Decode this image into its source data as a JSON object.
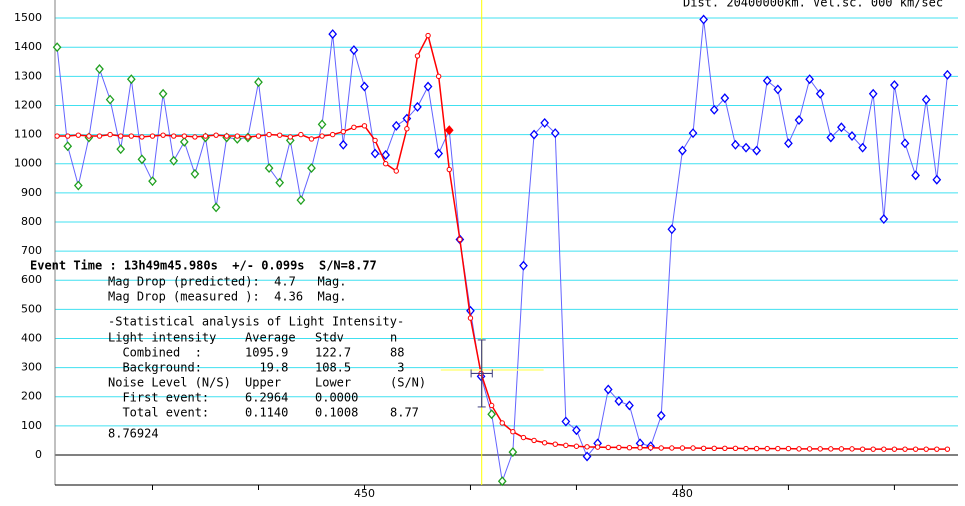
{
  "chart_data": {
    "type": "line",
    "header_text": "Dist. 20400000km. Vel.sc. 000 km/sec",
    "xlim": [
      420.8,
      506
    ],
    "ylim": [
      -103,
      1562
    ],
    "xticks": [
      430,
      440,
      450,
      460,
      470,
      480,
      490,
      500
    ],
    "xtick_labels": [
      450,
      480
    ],
    "yticks": [
      0,
      100,
      200,
      300,
      400,
      500,
      600,
      700,
      800,
      900,
      1000,
      1100,
      1200,
      1300,
      1400,
      1500
    ],
    "grid": true,
    "grid_color": "#40e0f0",
    "zero_line": true,
    "series": [
      {
        "color": "#6464ff",
        "marker": "diamond",
        "x": [
          421,
          422,
          423,
          424,
          425,
          426,
          427,
          428,
          429,
          430,
          431,
          432,
          433,
          434,
          435,
          436,
          437,
          438,
          439,
          440,
          441,
          442,
          443,
          444,
          445,
          446,
          447,
          448,
          449,
          450,
          451,
          452,
          453,
          454,
          455,
          456,
          457,
          458,
          459,
          460,
          461,
          462,
          463,
          464,
          465,
          466,
          467,
          468,
          469,
          470,
          471,
          472,
          473,
          474,
          475,
          476,
          477,
          478,
          479,
          480,
          481,
          482,
          483,
          484,
          485,
          486,
          487,
          488,
          489,
          490,
          491,
          492,
          493,
          494,
          495,
          496,
          497,
          498,
          499,
          500,
          501,
          502,
          503,
          504,
          505
        ],
        "values": [
          1400,
          1060,
          925,
          1090,
          1325,
          1220,
          1050,
          1290,
          1015,
          940,
          1240,
          1010,
          1075,
          965,
          1090,
          850,
          1090,
          1085,
          1090,
          1280,
          985,
          935,
          1080,
          875,
          985,
          1135,
          1445,
          1065,
          1390,
          1265,
          1035,
          1030,
          1130,
          1155,
          1195,
          1265,
          1035,
          1115,
          740,
          495,
          270,
          140,
          -90,
          10,
          650,
          1100,
          1140,
          1105,
          115,
          85,
          -5,
          40,
          225,
          185,
          170,
          40,
          30,
          135,
          775,
          1045,
          1105,
          1495,
          1185,
          1225,
          1065,
          1055,
          1045,
          1285,
          1255,
          1070,
          1150,
          1290,
          1240,
          1090,
          1125,
          1095,
          1055,
          1240,
          810,
          1270,
          1070,
          960,
          1220,
          945,
          1305
        ],
        "point_colors": [
          "#20a020",
          "#20a020",
          "#20a020",
          "#20a020",
          "#20a020",
          "#20a020",
          "#20a020",
          "#20a020",
          "#20a020",
          "#20a020",
          "#20a020",
          "#20a020",
          "#20a020",
          "#20a020",
          "#20a020",
          "#20a020",
          "#20a020",
          "#20a020",
          "#20a020",
          "#20a020",
          "#20a020",
          "#20a020",
          "#20a020",
          "#20a020",
          "#20a020",
          "#20a020",
          "#0000ff",
          "#0000ff",
          "#0000ff",
          "#0000ff",
          "#0000ff",
          "#0000ff",
          "#0000ff",
          "#0000ff",
          "#0000ff",
          "#0000ff",
          "#0000ff",
          "#ff0000",
          "#0000ff",
          "#0000ff",
          "#0000ff",
          "#20a020",
          "#20a020",
          "#20a020",
          "#0000ff",
          "#0000ff",
          "#0000ff",
          "#0000ff",
          "#0000ff",
          "#0000ff",
          "#0000ff",
          "#0000ff",
          "#0000ff",
          "#0000ff",
          "#0000ff",
          "#0000ff",
          "#0000ff",
          "#0000ff",
          "#0000ff",
          "#0000ff",
          "#0000ff",
          "#0000ff",
          "#0000ff",
          "#0000ff",
          "#0000ff",
          "#0000ff",
          "#0000ff",
          "#0000ff",
          "#0000ff",
          "#0000ff",
          "#0000ff",
          "#0000ff",
          "#0000ff",
          "#0000ff",
          "#0000ff",
          "#0000ff",
          "#0000ff",
          "#0000ff",
          "#0000ff",
          "#0000ff",
          "#0000ff",
          "#0000ff",
          "#0000ff",
          "#0000ff",
          "#0000ff"
        ]
      },
      {
        "color": "#ff0000",
        "marker": "circle",
        "x": [
          421,
          422,
          423,
          424,
          425,
          426,
          427,
          428,
          429,
          430,
          431,
          432,
          433,
          434,
          435,
          436,
          437,
          438,
          439,
          440,
          441,
          442,
          443,
          444,
          445,
          446,
          447,
          448,
          449,
          450,
          451,
          452,
          453,
          454,
          455,
          456,
          457,
          458,
          459,
          460,
          461,
          462,
          463,
          464,
          465,
          466,
          467,
          468,
          469,
          470,
          471,
          472,
          473,
          474,
          475,
          476,
          477,
          478,
          479,
          480,
          481,
          482,
          483,
          484,
          485,
          486,
          487,
          488,
          489,
          490,
          491,
          492,
          493,
          494,
          495,
          496,
          497,
          498,
          499,
          500,
          501,
          502,
          503,
          504,
          505
        ],
        "values": [
          1095,
          1095,
          1098,
          1095,
          1095,
          1100,
          1095,
          1095,
          1092,
          1095,
          1098,
          1095,
          1095,
          1092,
          1095,
          1098,
          1095,
          1095,
          1092,
          1095,
          1100,
          1098,
          1092,
          1100,
          1085,
          1095,
          1100,
          1110,
          1125,
          1130,
          1080,
          1000,
          975,
          1120,
          1370,
          1440,
          1300,
          980,
          740,
          470,
          280,
          170,
          110,
          80,
          60,
          50,
          42,
          37,
          33,
          30,
          28,
          27,
          26,
          26,
          25,
          25,
          25,
          24,
          24,
          24,
          24,
          23,
          23,
          23,
          23,
          22,
          22,
          22,
          22,
          22,
          21,
          21,
          21,
          21,
          21,
          21,
          20,
          20,
          20,
          20,
          20,
          20,
          20,
          20,
          20
        ]
      }
    ],
    "event_marker": {
      "x": 461.06,
      "y": 280,
      "y_error": 115,
      "x_error": 1,
      "color": "#404080",
      "line_color": "#ffff00"
    },
    "level_marker": {
      "y": 292,
      "xlim": [
        457.2,
        466.9
      ],
      "color": "#ffff80"
    },
    "annotations": {
      "event_time": "Event Time : 13h49m45.980s  +/- 0.099s  S/N=8.77",
      "lines": [
        "Mag Drop (predicted):  4.7   Mag.",
        "Mag Drop (measured ):  4.36  Mag.",
        "-Statistical analysis of Light Intensity-"
      ],
      "rows": [
        [
          "Light intensity",
          "Average",
          "Stdv",
          "n"
        ],
        [
          "  Combined  :",
          "1095.9",
          "122.7",
          "88"
        ],
        [
          "  Background:",
          "  19.8",
          "108.5",
          " 3"
        ],
        [
          "Noise Level (N/S)",
          "Upper",
          "Lower",
          "(S/N)"
        ],
        [
          "  First event:",
          "6.2964",
          "0.0000"
        ],
        [
          "  Total event:",
          "0.1140",
          "0.1008",
          "8.77"
        ]
      ],
      "result": "8.76924"
    }
  }
}
